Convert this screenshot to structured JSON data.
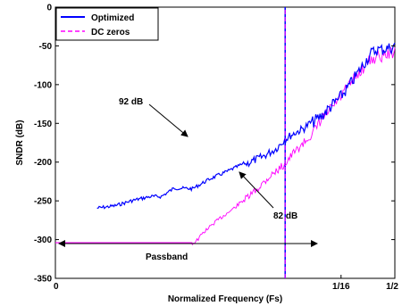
{
  "chart_data": {
    "type": "line",
    "title": "",
    "xlabel": "Normalized Frequency (Fs)",
    "ylabel": "SNDR (dB)",
    "ylim": [
      -350,
      0
    ],
    "xlim": [
      0,
      0.5
    ],
    "x_scale": "log",
    "grid": false,
    "legend_position": "top-left",
    "x_ticks": [
      {
        "value": 0,
        "label": "0"
      },
      {
        "value": 0.0625,
        "label": "1/16"
      },
      {
        "value": 0.5,
        "label": "1/2"
      }
    ],
    "y_ticks": [
      0,
      -50,
      -100,
      -150,
      -200,
      -250,
      -300,
      -350
    ],
    "series": [
      {
        "name": "Optimized",
        "color": "#0000ff",
        "dash": "solid",
        "x": [
          5e-06,
          1e-05,
          2e-05,
          4e-05,
          6e-05,
          0.0001,
          0.0002,
          0.0004,
          0.0008,
          0.0015,
          0.003,
          0.005,
          0.007,
          0.01,
          0.015,
          0.02,
          0.03,
          0.04,
          0.06,
          0.08,
          0.12,
          0.16,
          0.2,
          0.25,
          0.3,
          0.4,
          0.5
        ],
        "values": [
          -258,
          -255,
          -248,
          -243,
          -243,
          -232,
          -233,
          -220,
          -210,
          -200,
          -190,
          -180,
          -168,
          -160,
          -153,
          -145,
          -135,
          -125,
          -112,
          -100,
          -80,
          -65,
          -55,
          -50,
          -50,
          -48,
          -46
        ]
      },
      {
        "name": "DC zeros",
        "color": "#ff00ff",
        "dash": "dashed",
        "x": [
          1e-06,
          0.0002,
          0.00025,
          0.0003,
          0.0005,
          0.001,
          0.002,
          0.004,
          0.007,
          0.01,
          0.02,
          0.03,
          0.05,
          0.08,
          0.12,
          0.16,
          0.2,
          0.25,
          0.3,
          0.4,
          0.5
        ],
        "values": [
          -304,
          -304,
          -298,
          -290,
          -275,
          -258,
          -238,
          -215,
          -200,
          -185,
          -162,
          -140,
          -120,
          -100,
          -82,
          -70,
          -62,
          -60,
          -58,
          -55,
          -52
        ]
      }
    ],
    "spike": {
      "x": 0.0072,
      "from": -350,
      "to": 0
    },
    "annotations": [
      {
        "text": "92 dB"
      },
      {
        "text": "82 dB"
      },
      {
        "text": "Passband"
      }
    ]
  }
}
